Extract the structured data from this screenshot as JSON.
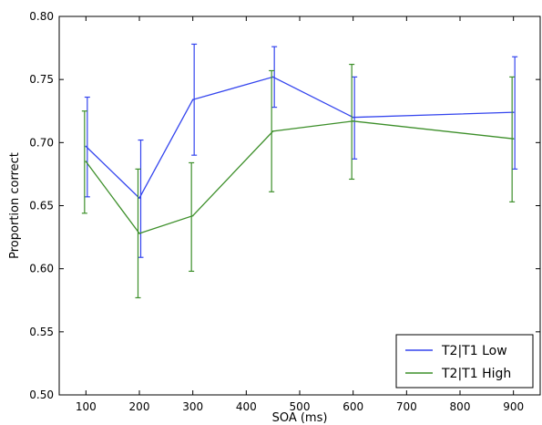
{
  "chart_data": {
    "type": "line",
    "xlabel": "SOA (ms)",
    "ylabel": "Proportion correct",
    "xlim": [
      50,
      950
    ],
    "ylim": [
      0.5,
      0.8
    ],
    "x_ticks": [
      100,
      200,
      300,
      400,
      500,
      600,
      700,
      800,
      900
    ],
    "x_tick_labels": [
      "100",
      "200",
      "300",
      "400",
      "500",
      "600",
      "700",
      "800",
      "900"
    ],
    "y_ticks": [
      0.5,
      0.55,
      0.6,
      0.65,
      0.7,
      0.75,
      0.8
    ],
    "y_tick_labels": [
      "0.50",
      "0.55",
      "0.60",
      "0.65",
      "0.70",
      "0.75",
      "0.80"
    ],
    "x": [
      100,
      200,
      300,
      450,
      600,
      900
    ],
    "grid": false,
    "legend_position": "bottom-right",
    "series": [
      {
        "name": "T2|T1 Low",
        "color": "#3344ee",
        "values": [
          0.697,
          0.656,
          0.734,
          0.752,
          0.72,
          0.724
        ],
        "err_low": [
          0.657,
          0.609,
          0.69,
          0.728,
          0.687,
          0.679
        ],
        "err_high": [
          0.736,
          0.702,
          0.778,
          0.776,
          0.752,
          0.768
        ]
      },
      {
        "name": "T2|T1 High",
        "color": "#3d8f2a",
        "values": [
          0.685,
          0.628,
          0.642,
          0.709,
          0.717,
          0.703
        ],
        "err_low": [
          0.644,
          0.577,
          0.598,
          0.661,
          0.671,
          0.653
        ],
        "err_high": [
          0.725,
          0.679,
          0.684,
          0.757,
          0.762,
          0.752
        ]
      }
    ]
  }
}
